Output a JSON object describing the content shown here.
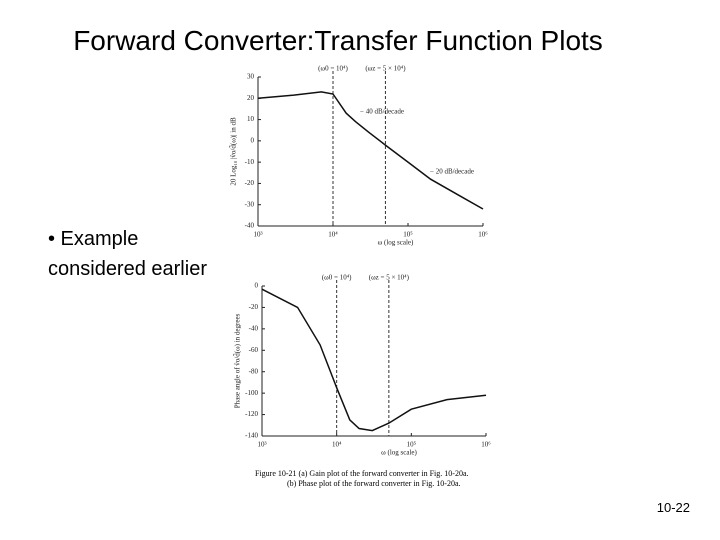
{
  "slide": {
    "title": "Forward Converter:Transfer Function Plots",
    "bullet": [
      "• Example",
      "considered earlier"
    ],
    "caption": [
      "Figure 10-21   (a) Gain plot of the forward converter in Fig. 10-20a.",
      "(b) Phase plot of the forward converter in Fig. 10-20a."
    ],
    "page_number": "10-22"
  },
  "chart_data": [
    {
      "type": "line",
      "log_x": true,
      "ylabel": "20 Log₁₀ |v̂o/d̂(ω)| in dB",
      "xlabel": "ω (log scale)",
      "x": [
        1000,
        3000,
        7000,
        10000,
        15000,
        20000,
        30000,
        50000,
        100000,
        200000,
        500000,
        1000000
      ],
      "values": [
        20,
        21.5,
        23,
        22,
        13,
        9,
        4,
        -2,
        -10,
        -18,
        -26,
        -32
      ],
      "color": "#111111",
      "xlim": [
        1000,
        1000000
      ],
      "ylim": [
        -40,
        30
      ],
      "xticks": [
        {
          "value": 1000,
          "label": "10³"
        },
        {
          "value": 10000,
          "label": "10⁴"
        },
        {
          "value": 100000,
          "label": "10⁵"
        },
        {
          "value": 1000000,
          "label": "10⁶"
        }
      ],
      "yticks": [
        30,
        20,
        10,
        0,
        -10,
        -20,
        -30,
        -40
      ],
      "markers": [
        {
          "x": 10000,
          "label": "(ω0 = 10⁴)"
        },
        {
          "x": 50000,
          "label": "(ωz = 5 × 10⁴)"
        }
      ],
      "annotations": [
        "− 40 dB/decade",
        "− 20 dB/decade"
      ]
    },
    {
      "type": "line",
      "log_x": true,
      "ylabel": "Phase angle of v̂o/d̂(ω) in degrees",
      "xlabel": "ω (log scale)",
      "x": [
        1000,
        3000,
        6000,
        10000,
        15000,
        20000,
        30000,
        50000,
        100000,
        300000,
        1000000
      ],
      "values": [
        -3,
        -20,
        -55,
        -95,
        -125,
        -133,
        -135,
        -128,
        -115,
        -106,
        -102
      ],
      "color": "#111111",
      "xlim": [
        1000,
        1000000
      ],
      "ylim": [
        -140,
        0
      ],
      "xticks": [
        {
          "value": 1000,
          "label": "10³"
        },
        {
          "value": 10000,
          "label": "10⁴"
        },
        {
          "value": 100000,
          "label": "10⁵"
        },
        {
          "value": 1000000,
          "label": "10⁶"
        }
      ],
      "yticks": [
        0,
        -20,
        -40,
        -60,
        -80,
        -100,
        -120,
        -140
      ],
      "markers": [
        {
          "x": 10000,
          "label": "(ω0 = 10⁴)"
        },
        {
          "x": 50000,
          "label": "(ωz = 5 × 10⁴)"
        }
      ]
    }
  ]
}
